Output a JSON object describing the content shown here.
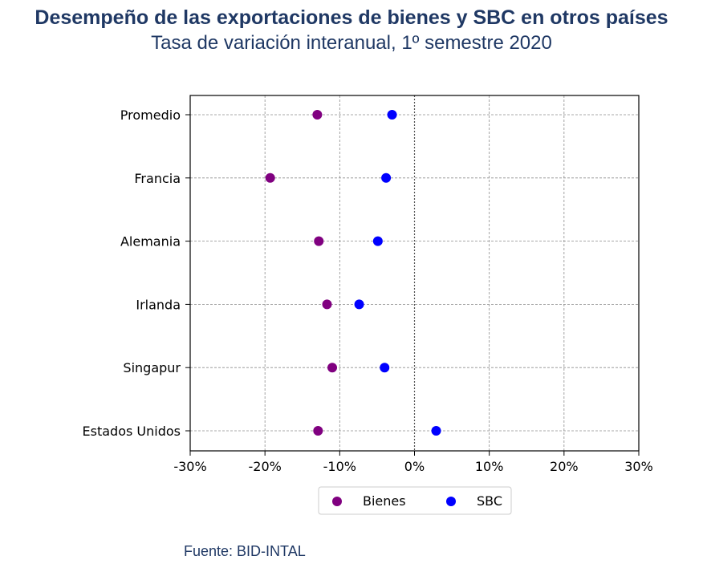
{
  "header": {
    "title": "Desempeño de las exportaciones de bienes y SBC en otros países",
    "subtitle": "Tasa de variación interanual, 1º semestre 2020"
  },
  "footer": {
    "source": "Fuente: BID-INTAL"
  },
  "chart_data": {
    "type": "scatter",
    "categories": [
      "Promedio",
      "Francia",
      "Alemania",
      "Irlanda",
      "Singapur",
      "Estados Unidos"
    ],
    "series": [
      {
        "name": "Bienes",
        "color": "#800080",
        "values": [
          -13.0,
          -19.3,
          -12.8,
          -11.7,
          -11.0,
          -12.9
        ]
      },
      {
        "name": "SBC",
        "color": "#0000ff",
        "values": [
          -3.0,
          -3.8,
          -4.9,
          -7.4,
          -4.0,
          2.9
        ]
      }
    ],
    "xlim": [
      -30,
      30
    ],
    "xticks": [
      -30,
      -20,
      -10,
      0,
      10,
      20,
      30
    ],
    "xtick_labels": [
      "-30%",
      "-20%",
      "-10%",
      "0%",
      "10%",
      "20%",
      "30%"
    ],
    "grid": true,
    "legend_position": "bottom-center"
  }
}
